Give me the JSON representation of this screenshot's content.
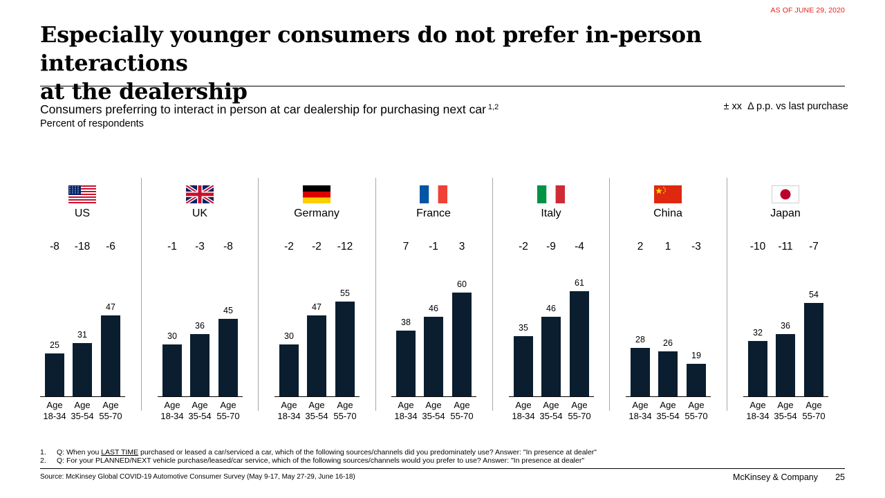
{
  "header": {
    "as_of": "AS OF JUNE 29, 2020",
    "title_line1": "Especially younger consumers do not prefer in-person interactions",
    "title_line2": "at the dealership"
  },
  "chart_header": {
    "subtitle": "Consumers preferring to interact in person at car dealership for purchasing next car",
    "subtitle_footnote_ref": "1,2",
    "unit": "Percent of respondents",
    "delta_legend": "± xx  Δ p.p. vs last purchase"
  },
  "colors": {
    "bar": "#0a1e2f",
    "accent_red": "#e3211c",
    "divider": "#a6a6a6"
  },
  "chart_data": {
    "type": "bar",
    "categories": [
      "Age 18-34",
      "Age 35-54",
      "Age 55-70"
    ],
    "category_lines": [
      [
        "Age",
        "18-34"
      ],
      [
        "Age",
        "35-54"
      ],
      [
        "Age",
        "55-70"
      ]
    ],
    "ylim": [
      0,
      100
    ],
    "grid": false,
    "panels": [
      {
        "country": "US",
        "flag": "us-flag-icon",
        "values": [
          25,
          31,
          47
        ],
        "labels": [
          "25",
          "31",
          "47"
        ],
        "deltas": [
          "-8",
          "-18",
          "-6"
        ]
      },
      {
        "country": "UK",
        "flag": "uk-flag-icon",
        "values": [
          30,
          36,
          45
        ],
        "labels": [
          "30",
          "36",
          "45"
        ],
        "deltas": [
          "-1",
          "-3",
          "-8"
        ]
      },
      {
        "country": "Germany",
        "flag": "germany-flag-icon",
        "values": [
          30,
          47,
          55
        ],
        "labels": [
          "30",
          "47",
          "55"
        ],
        "deltas": [
          "-2",
          "-2",
          "-12"
        ]
      },
      {
        "country": "France",
        "flag": "france-flag-icon",
        "values": [
          38,
          46,
          60
        ],
        "labels": [
          "38",
          "46",
          "60"
        ],
        "deltas": [
          "7",
          "-1",
          "3"
        ]
      },
      {
        "country": "Italy",
        "flag": "italy-flag-icon",
        "values": [
          35,
          46,
          61
        ],
        "labels": [
          "35",
          "46",
          "61"
        ],
        "deltas": [
          "-2",
          "-9",
          "-4"
        ]
      },
      {
        "country": "China",
        "flag": "china-flag-icon",
        "values": [
          28,
          26,
          19
        ],
        "labels": [
          "28",
          "26",
          "19"
        ],
        "deltas": [
          "2",
          "1",
          "-3"
        ]
      },
      {
        "country": "Japan",
        "flag": "japan-flag-icon",
        "values": [
          32,
          36,
          54
        ],
        "labels": [
          "32",
          "36",
          "54"
        ],
        "deltas": [
          "-10",
          "-11",
          "-7"
        ]
      }
    ]
  },
  "footnotes": [
    {
      "num": "1.",
      "pre": "Q: When you ",
      "underlined": "LAST TIME",
      "post": " purchased or leased a car/serviced a car, which of the following sources/channels did you predominately use? Answer: \"In presence at dealer\""
    },
    {
      "num": "2.",
      "pre": "Q: For your PLANNED/NEXT vehicle purchase/leased/car service, which of the following sources/channels would you prefer to use? Answer: \"In presence at dealer\"",
      "underlined": "",
      "post": ""
    }
  ],
  "footer": {
    "source": "Source: McKinsey Global COVID-19 Automotive Consumer Survey (May 9-17, May 27-29, June 16-18)",
    "brand": "McKinsey & Company",
    "page": "25"
  }
}
